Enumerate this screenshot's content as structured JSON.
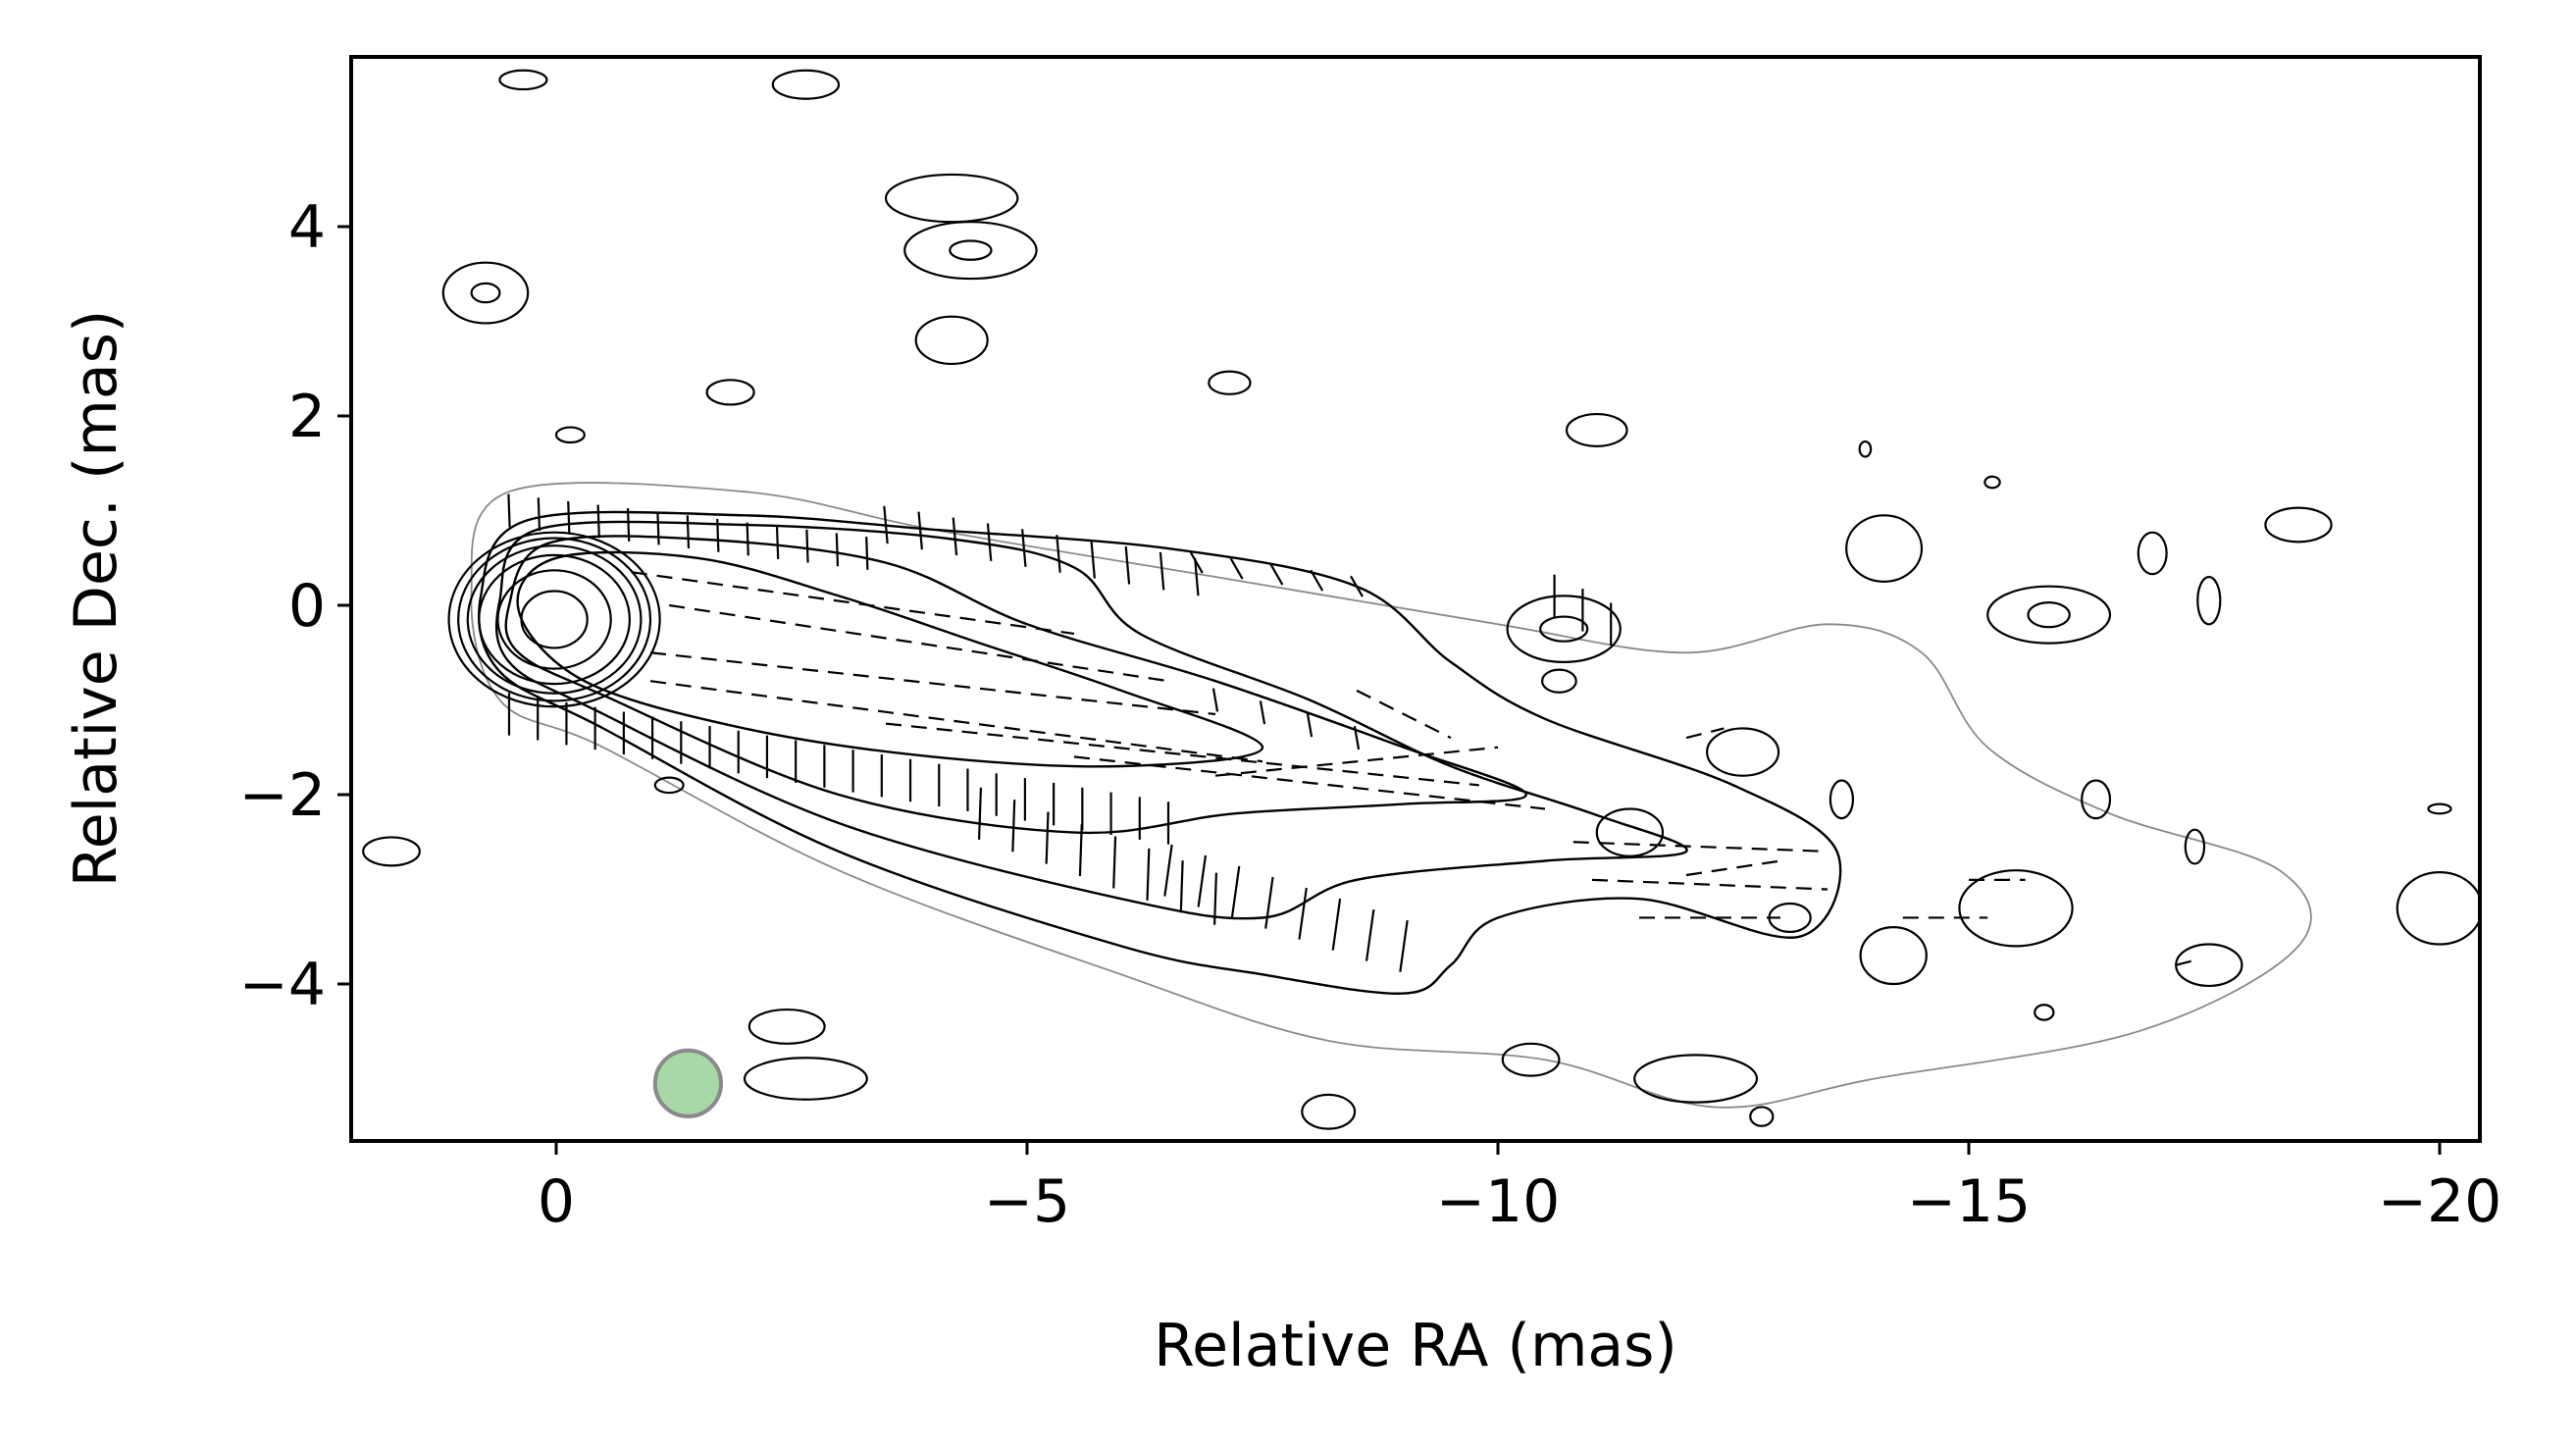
{
  "chart_data": {
    "type": "contour",
    "title": "",
    "xlabel": "Relative RA (mas)",
    "ylabel": "Relative Dec. (mas)",
    "xlim": [
      2.2,
      -20.4
    ],
    "ylim": [
      -5.7,
      5.7
    ],
    "x_axis_inverted": true,
    "xticks": [
      0,
      -5,
      -10,
      -15,
      -20
    ],
    "xtick_labels": [
      "0",
      "−5",
      "−10",
      "−15",
      "−20"
    ],
    "yticks": [
      4,
      2,
      0,
      -2,
      -4
    ],
    "ytick_labels": [
      "4",
      "2",
      "0",
      "−2",
      "−4"
    ],
    "colors": {
      "contour": "#000000",
      "lowest_contour": "#8a8a8a",
      "beam_fill": "#a8d8a8",
      "beam_edge": "#8a8a8a"
    },
    "core": {
      "x": 0.0,
      "y": -0.15
    },
    "beam": {
      "x": -1.4,
      "y": -5.05,
      "diameter_mas": 0.7
    },
    "nested_core_contours": [
      {
        "rx": 0.35,
        "ry": 0.3
      },
      {
        "rx": 0.6,
        "ry": 0.52
      },
      {
        "rx": 0.8,
        "ry": 0.68
      },
      {
        "rx": 0.92,
        "ry": 0.78
      },
      {
        "rx": 1.02,
        "ry": 0.86
      },
      {
        "rx": 1.12,
        "ry": 0.92
      }
    ],
    "jet_contours": [
      {
        "level": "lowest",
        "points": [
          [
            0.9,
            0.15
          ],
          [
            0.5,
            1.2
          ],
          [
            -2,
            1.2
          ],
          [
            -4,
            0.8
          ],
          [
            -7,
            0.3
          ],
          [
            -10,
            -0.2
          ],
          [
            -12,
            -0.5
          ],
          [
            -13.5,
            -0.2
          ],
          [
            -14.5,
            -0.5
          ],
          [
            -15.2,
            -1.5
          ],
          [
            -16.5,
            -2.2
          ],
          [
            -18.3,
            -2.8
          ],
          [
            -18.5,
            -3.6
          ],
          [
            -16.8,
            -4.5
          ],
          [
            -14,
            -5.0
          ],
          [
            -12.3,
            -5.3
          ],
          [
            -10.5,
            -4.8
          ],
          [
            -8.2,
            -4.6
          ],
          [
            -6,
            -3.9
          ],
          [
            -3,
            -2.8
          ],
          [
            -0.5,
            -1.5
          ],
          [
            0.6,
            -1.0
          ]
        ]
      },
      {
        "level": "2",
        "points": [
          [
            0.8,
            0.1
          ],
          [
            0.3,
            0.9
          ],
          [
            -2,
            0.95
          ],
          [
            -4,
            0.8
          ],
          [
            -6.5,
            0.6
          ],
          [
            -8.5,
            0.2
          ],
          [
            -9.5,
            -0.6
          ],
          [
            -10.5,
            -1.2
          ],
          [
            -12.5,
            -1.9
          ],
          [
            -13.6,
            -2.6
          ],
          [
            -13.2,
            -3.5
          ],
          [
            -11.5,
            -3.1
          ],
          [
            -10,
            -3.3
          ],
          [
            -9.5,
            -3.8
          ],
          [
            -9,
            -4.1
          ],
          [
            -7.5,
            -3.9
          ],
          [
            -6,
            -3.6
          ],
          [
            -3,
            -2.6
          ],
          [
            -0.5,
            -1.3
          ],
          [
            0.6,
            -0.7
          ]
        ]
      },
      {
        "level": "3",
        "points": [
          [
            0.6,
            0.05
          ],
          [
            0.2,
            0.8
          ],
          [
            -2,
            0.85
          ],
          [
            -4.2,
            0.7
          ],
          [
            -5.5,
            0.4
          ],
          [
            -6.2,
            -0.3
          ],
          [
            -8,
            -1.0
          ],
          [
            -9.5,
            -1.7
          ],
          [
            -11.0,
            -2.2
          ],
          [
            -12.0,
            -2.6
          ],
          [
            -10.5,
            -2.7
          ],
          [
            -8.5,
            -2.9
          ],
          [
            -7.5,
            -3.3
          ],
          [
            -6,
            -3.1
          ],
          [
            -3,
            -2.3
          ],
          [
            -0.4,
            -1.1
          ],
          [
            0.5,
            -0.6
          ]
        ]
      },
      {
        "level": "4",
        "points": [
          [
            0.5,
            0.0
          ],
          [
            0.1,
            0.65
          ],
          [
            -1.5,
            0.7
          ],
          [
            -3.5,
            0.45
          ],
          [
            -5,
            -0.2
          ],
          [
            -7,
            -0.8
          ],
          [
            -9,
            -1.5
          ],
          [
            -10.3,
            -2.0
          ],
          [
            -9,
            -2.1
          ],
          [
            -7.2,
            -2.2
          ],
          [
            -5.5,
            -2.4
          ],
          [
            -3,
            -2.0
          ],
          [
            -0.5,
            -0.95
          ],
          [
            0.4,
            -0.5
          ]
        ]
      },
      {
        "level": "5",
        "points": [
          [
            0.4,
            -0.05
          ],
          [
            0.0,
            0.5
          ],
          [
            -1.5,
            0.5
          ],
          [
            -3,
            0.1
          ],
          [
            -4.5,
            -0.4
          ],
          [
            -6,
            -0.9
          ],
          [
            -7.5,
            -1.5
          ],
          [
            -6,
            -1.7
          ],
          [
            -4,
            -1.6
          ],
          [
            -2,
            -1.3
          ],
          [
            -0.3,
            -0.8
          ]
        ]
      }
    ],
    "isolated_contours": [
      {
        "x": 0.35,
        "y": 5.55,
        "rx": 0.25,
        "ry": 0.1
      },
      {
        "x": -2.65,
        "y": 5.5,
        "rx": 0.35,
        "ry": 0.15
      },
      {
        "x": -4.2,
        "y": 4.3,
        "rx": 0.7,
        "ry": 0.25
      },
      {
        "x": -4.4,
        "y": 3.75,
        "rx": 0.7,
        "ry": 0.3
      },
      {
        "x": -4.4,
        "y": 3.75,
        "rx": 0.22,
        "ry": 0.1
      },
      {
        "x": 0.75,
        "y": 3.3,
        "rx": 0.45,
        "ry": 0.32
      },
      {
        "x": 0.75,
        "y": 3.3,
        "rx": 0.15,
        "ry": 0.1
      },
      {
        "x": -4.2,
        "y": 2.8,
        "rx": 0.38,
        "ry": 0.25
      },
      {
        "x": -1.85,
        "y": 2.25,
        "rx": 0.25,
        "ry": 0.13
      },
      {
        "x": -7.15,
        "y": 2.35,
        "rx": 0.22,
        "ry": 0.12
      },
      {
        "x": -0.15,
        "y": 1.8,
        "rx": 0.15,
        "ry": 0.08
      },
      {
        "x": -11.05,
        "y": 1.85,
        "rx": 0.32,
        "ry": 0.17
      },
      {
        "x": -15.25,
        "y": 1.3,
        "rx": 0.08,
        "ry": 0.06
      },
      {
        "x": -18.5,
        "y": 0.85,
        "rx": 0.35,
        "ry": 0.18
      },
      {
        "x": -14.1,
        "y": 0.6,
        "rx": 0.4,
        "ry": 0.35
      },
      {
        "x": -10.7,
        "y": -0.25,
        "rx": 0.6,
        "ry": 0.35
      },
      {
        "x": -10.7,
        "y": -0.25,
        "rx": 0.25,
        "ry": 0.13
      },
      {
        "x": -15.85,
        "y": -0.1,
        "rx": 0.65,
        "ry": 0.3
      },
      {
        "x": -15.85,
        "y": -0.1,
        "rx": 0.22,
        "ry": 0.13
      },
      {
        "x": -10.65,
        "y": -0.8,
        "rx": 0.18,
        "ry": 0.12
      },
      {
        "x": -12.6,
        "y": -1.55,
        "rx": 0.38,
        "ry": 0.25
      },
      {
        "x": -11.4,
        "y": -2.4,
        "rx": 0.35,
        "ry": 0.25
      },
      {
        "x": -15.5,
        "y": -3.2,
        "rx": 0.6,
        "ry": 0.4
      },
      {
        "x": -13.1,
        "y": -3.3,
        "rx": 0.22,
        "ry": 0.15
      },
      {
        "x": -17.55,
        "y": -3.8,
        "rx": 0.35,
        "ry": 0.22
      },
      {
        "x": -20.0,
        "y": -2.15,
        "rx": 0.12,
        "ry": 0.05
      },
      {
        "x": 1.75,
        "y": -2.6,
        "rx": 0.3,
        "ry": 0.15
      },
      {
        "x": -1.2,
        "y": -1.9,
        "rx": 0.15,
        "ry": 0.08
      },
      {
        "x": -2.45,
        "y": -4.45,
        "rx": 0.4,
        "ry": 0.18
      },
      {
        "x": -2.65,
        "y": -5.0,
        "rx": 0.65,
        "ry": 0.22
      },
      {
        "x": -10.35,
        "y": -4.8,
        "rx": 0.3,
        "ry": 0.17
      },
      {
        "x": -12.1,
        "y": -5.0,
        "rx": 0.65,
        "ry": 0.25
      },
      {
        "x": -8.2,
        "y": -5.35,
        "rx": 0.28,
        "ry": 0.18
      },
      {
        "x": -15.8,
        "y": -4.3,
        "rx": 0.1,
        "ry": 0.08
      },
      {
        "x": -17.4,
        "y": -2.55,
        "rx": 0.1,
        "ry": 0.18
      },
      {
        "x": -16.35,
        "y": -2.05,
        "rx": 0.15,
        "ry": 0.2
      },
      {
        "x": -20.0,
        "y": -3.2,
        "rx": 0.45,
        "ry": 0.38
      },
      {
        "x": -13.65,
        "y": -2.05,
        "rx": 0.12,
        "ry": 0.2
      },
      {
        "x": -14.2,
        "y": -3.7,
        "rx": 0.35,
        "ry": 0.3
      },
      {
        "x": -16.95,
        "y": 0.55,
        "rx": 0.15,
        "ry": 0.22
      },
      {
        "x": -17.55,
        "y": 0.05,
        "rx": 0.12,
        "ry": 0.25
      },
      {
        "x": -13.9,
        "y": 1.65,
        "rx": 0.06,
        "ry": 0.08
      },
      {
        "x": -12.8,
        "y": -5.4,
        "rx": 0.12,
        "ry": 0.1
      }
    ],
    "evpa_regions": [
      {
        "x0": 0.5,
        "x1": -3.3,
        "y0": 1.0,
        "y1": 0.55,
        "angle": 92,
        "len": 0.35,
        "dashed": false,
        "step": 0.32
      },
      {
        "x0": -3.5,
        "x1": -6.8,
        "y0": 0.85,
        "y1": 0.3,
        "angle": 95,
        "len": 0.4,
        "dashed": false,
        "step": 0.38
      },
      {
        "x0": -6.8,
        "x1": -8.5,
        "y0": 0.45,
        "y1": 0.2,
        "angle": 120,
        "len": 0.25,
        "dashed": false,
        "step": 0.4
      },
      {
        "x0": 0.5,
        "x1": -6.5,
        "y0": -1.15,
        "y1": -2.3,
        "angle": 90,
        "len": 0.45,
        "dashed": false,
        "step": 0.3
      },
      {
        "x0": -6.5,
        "x1": -9.0,
        "y0": -2.8,
        "y1": -3.6,
        "angle": 82,
        "len": 0.55,
        "dashed": false,
        "step": 0.35
      },
      {
        "x0": -4.5,
        "x1": -7.0,
        "y0": -2.2,
        "y1": -3.1,
        "angle": 88,
        "len": 0.55,
        "dashed": false,
        "step": 0.35
      },
      {
        "x0": -10.6,
        "x1": -11.2,
        "y0": 0.1,
        "y1": -0.2,
        "angle": 90,
        "len": 0.45,
        "dashed": false,
        "step": 0.3
      },
      {
        "x0": -7.0,
        "x1": -8.5,
        "y0": -1.0,
        "y1": -1.4,
        "angle": 100,
        "len": 0.25,
        "dashed": false,
        "step": 0.5
      }
    ],
    "evpa_dashed_lines": [
      {
        "x0": -0.8,
        "y0": 0.35,
        "x1": -5.5,
        "y1": -0.3
      },
      {
        "x0": -1.2,
        "y0": 0.0,
        "x1": -6.5,
        "y1": -0.8
      },
      {
        "x0": -1.0,
        "y0": -0.5,
        "x1": -7.0,
        "y1": -1.15
      },
      {
        "x0": -1.0,
        "y0": -0.8,
        "x1": -7.5,
        "y1": -1.65
      },
      {
        "x0": -3.5,
        "y0": -1.25,
        "x1": -9.8,
        "y1": -1.9
      },
      {
        "x0": -5.5,
        "y0": -1.6,
        "x1": -10.5,
        "y1": -2.15
      },
      {
        "x0": -7.0,
        "y0": -1.8,
        "x1": -10.0,
        "y1": -1.5
      },
      {
        "x0": -8.5,
        "y0": -0.9,
        "x1": -9.5,
        "y1": -1.4
      },
      {
        "x0": -10.8,
        "y0": -2.5,
        "x1": -13.5,
        "y1": -2.6
      },
      {
        "x0": -11.0,
        "y0": -2.9,
        "x1": -13.5,
        "y1": -3.0
      },
      {
        "x0": -11.5,
        "y0": -3.3,
        "x1": -13.0,
        "y1": -3.3
      },
      {
        "x0": -12.0,
        "y0": -2.85,
        "x1": -13.0,
        "y1": -2.7
      },
      {
        "x0": -14.3,
        "y0": -3.3,
        "x1": -15.2,
        "y1": -3.3
      },
      {
        "x0": -15.0,
        "y0": -2.9,
        "x1": -15.6,
        "y1": -2.9
      },
      {
        "x0": -12.0,
        "y0": -1.4,
        "x1": -12.4,
        "y1": -1.3
      },
      {
        "x0": -17.2,
        "y0": -3.8,
        "x1": -17.4,
        "y1": -3.75
      }
    ]
  }
}
